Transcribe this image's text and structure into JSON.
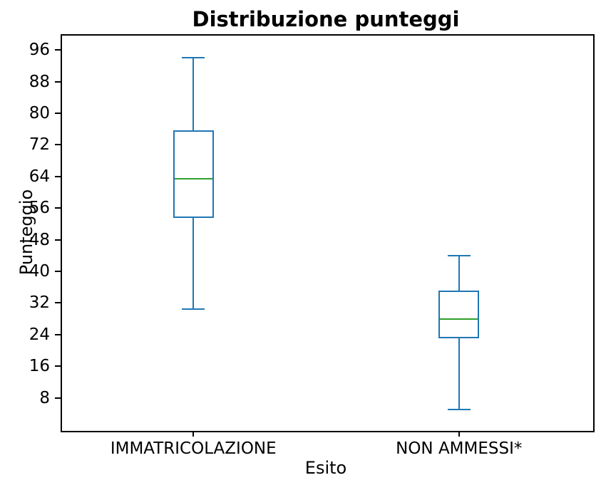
{
  "title": "Distribuzione punteggi",
  "colors": {
    "box_line": "#1f77b4",
    "median_line": "#2ca02c",
    "axis": "#000000",
    "text": "#000000",
    "background": "#ffffff"
  },
  "chart_data": {
    "type": "boxplot",
    "title": "Distribuzione punteggi",
    "xlabel": "Esito",
    "ylabel": "Punteggio",
    "ylim": [
      0,
      100
    ],
    "yticks": [
      8,
      16,
      24,
      32,
      40,
      48,
      56,
      64,
      72,
      80,
      88,
      96
    ],
    "grid": false,
    "categories": [
      "IMMATRICOLAZIONE",
      "NON AMMESSI*"
    ],
    "series": [
      {
        "name": "IMMATRICOLAZIONE",
        "whisker_low": 30.4,
        "q1": 53.5,
        "median": 63.4,
        "q3": 75.6,
        "whisker_high": 94
      },
      {
        "name": "NON AMMESSI*",
        "whisker_low": 5,
        "q1": 23,
        "median": 28,
        "q3": 35.2,
        "whisker_high": 44
      }
    ]
  }
}
